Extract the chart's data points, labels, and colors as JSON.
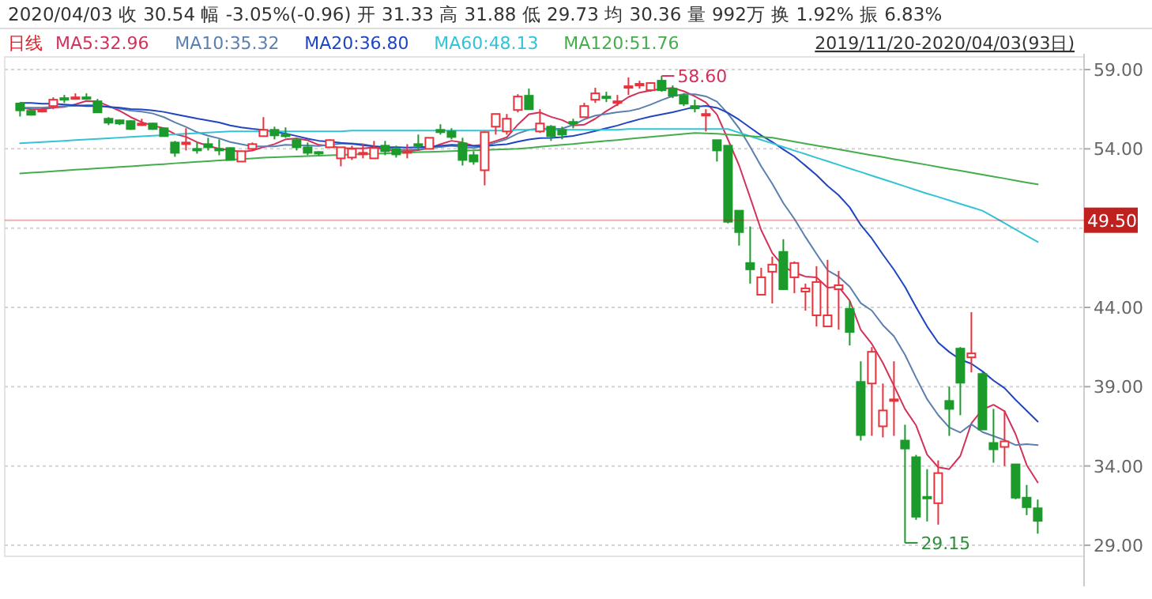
{
  "chart_data": {
    "type": "candlestick",
    "title": "2020/04/03 收 30.54 幅 -3.05%(-0.96) 开 31.33 高 31.88 低 29.73 均 30.36 量 992万 换 1.92% 振 6.83%",
    "subtitle": "日线",
    "categories": [
      null,
      null,
      null,
      null,
      null,
      null,
      null,
      null,
      null,
      null,
      null,
      null,
      null,
      null,
      null,
      null,
      null,
      null,
      null,
      null,
      null,
      null,
      null,
      null,
      null,
      null,
      null,
      null,
      null,
      null,
      null,
      null,
      null,
      null,
      null,
      null,
      null,
      null,
      null,
      null,
      null,
      null,
      null,
      null,
      null,
      null,
      null,
      null,
      null,
      null,
      null,
      null,
      null,
      null,
      null,
      null,
      null,
      null,
      null,
      null,
      null,
      null,
      null,
      null,
      null,
      null,
      null,
      null,
      null,
      null,
      null,
      null,
      null,
      null,
      null,
      null,
      null,
      null,
      null,
      null,
      null,
      null,
      null,
      null,
      null,
      null,
      null,
      null,
      null,
      null,
      null,
      null,
      null
    ],
    "ohlc": [
      [
        56.86,
        56.9,
        56.04,
        56.43
      ],
      [
        56.4,
        56.5,
        56.1,
        56.15
      ],
      [
        56.4,
        56.6,
        56.3,
        56.45
      ],
      [
        56.7,
        57.25,
        56.5,
        57.1
      ],
      [
        57.2,
        57.4,
        56.9,
        57.1
      ],
      [
        57.2,
        57.5,
        57.1,
        57.25
      ],
      [
        57.25,
        57.5,
        57.1,
        57.2
      ],
      [
        57.0,
        57.15,
        56.3,
        56.3
      ],
      [
        55.9,
        56.0,
        55.5,
        55.65
      ],
      [
        55.8,
        55.85,
        55.5,
        55.6
      ],
      [
        55.75,
        55.8,
        55.2,
        55.25
      ],
      [
        55.5,
        55.9,
        55.45,
        55.6
      ],
      [
        55.6,
        55.65,
        55.2,
        55.25
      ],
      [
        55.3,
        55.35,
        54.8,
        54.8
      ],
      [
        54.4,
        54.5,
        53.5,
        53.75
      ],
      [
        54.3,
        55.3,
        53.9,
        54.4
      ],
      [
        54.0,
        54.4,
        53.7,
        53.9
      ],
      [
        54.3,
        54.7,
        53.9,
        54.1
      ],
      [
        54.0,
        54.6,
        53.6,
        53.9
      ],
      [
        54.05,
        54.1,
        53.3,
        53.3
      ],
      [
        53.2,
        53.9,
        53.2,
        53.85
      ],
      [
        54.0,
        54.4,
        53.9,
        54.3
      ],
      [
        54.8,
        56.0,
        54.8,
        55.2
      ],
      [
        55.2,
        55.4,
        54.6,
        54.85
      ],
      [
        54.9,
        55.35,
        54.7,
        54.8
      ],
      [
        54.55,
        54.7,
        53.9,
        54.1
      ],
      [
        54.1,
        54.4,
        53.6,
        53.75
      ],
      [
        53.8,
        53.85,
        53.6,
        53.75
      ],
      [
        54.1,
        54.6,
        54.1,
        54.55
      ],
      [
        53.4,
        54.1,
        52.9,
        54.1
      ],
      [
        53.45,
        54.2,
        53.3,
        54.0
      ],
      [
        53.7,
        54.3,
        53.4,
        53.75
      ],
      [
        53.4,
        54.5,
        53.4,
        54.05
      ],
      [
        54.2,
        54.5,
        53.6,
        53.85
      ],
      [
        54.0,
        54.2,
        53.45,
        53.65
      ],
      [
        53.8,
        54.3,
        53.4,
        53.85
      ],
      [
        54.3,
        54.9,
        53.9,
        54.2
      ],
      [
        54.0,
        54.7,
        54.0,
        54.7
      ],
      [
        55.2,
        55.55,
        54.9,
        55.05
      ],
      [
        55.1,
        55.3,
        54.6,
        54.75
      ],
      [
        54.35,
        54.7,
        52.95,
        53.3
      ],
      [
        53.6,
        53.85,
        53.0,
        53.2
      ],
      [
        52.65,
        55.1,
        51.7,
        55.05
      ],
      [
        55.4,
        56.2,
        54.9,
        56.2
      ],
      [
        55.1,
        56.2,
        54.9,
        55.9
      ],
      [
        56.45,
        57.45,
        56.3,
        57.3
      ],
      [
        57.35,
        57.8,
        56.5,
        56.5
      ],
      [
        55.1,
        56.5,
        55.0,
        55.6
      ],
      [
        55.4,
        55.5,
        54.5,
        54.8
      ],
      [
        55.2,
        55.4,
        54.6,
        54.9
      ],
      [
        55.7,
        55.9,
        55.3,
        55.6
      ],
      [
        56.0,
        56.9,
        56.0,
        56.7
      ],
      [
        57.1,
        57.85,
        56.9,
        57.5
      ],
      [
        57.3,
        57.6,
        56.95,
        57.2
      ],
      [
        56.9,
        57.4,
        56.7,
        57.0
      ],
      [
        57.9,
        58.5,
        57.4,
        57.95
      ],
      [
        58.0,
        58.3,
        57.8,
        58.1
      ],
      [
        57.7,
        58.2,
        57.6,
        58.15
      ],
      [
        58.3,
        58.6,
        57.6,
        57.7
      ],
      [
        57.8,
        58.0,
        57.2,
        57.35
      ],
      [
        57.35,
        57.5,
        56.7,
        56.85
      ],
      [
        56.7,
        57.1,
        56.3,
        56.55
      ],
      [
        56.2,
        56.5,
        55.1,
        56.2
      ],
      [
        54.55,
        54.55,
        53.2,
        53.9
      ],
      [
        54.2,
        54.2,
        49.3,
        49.4
      ],
      [
        50.1,
        50.1,
        47.9,
        48.75
      ],
      [
        46.8,
        49.1,
        45.5,
        46.4
      ],
      [
        44.8,
        46.5,
        44.8,
        45.9
      ],
      [
        46.25,
        47.2,
        44.25,
        46.7
      ],
      [
        47.5,
        48.3,
        45.1,
        45.15
      ],
      [
        45.9,
        46.9,
        44.9,
        46.8
      ],
      [
        45.0,
        45.5,
        43.8,
        45.2
      ],
      [
        43.5,
        46.6,
        42.8,
        45.6
      ],
      [
        42.8,
        47.0,
        42.8,
        43.5
      ],
      [
        45.15,
        46.3,
        42.6,
        45.4
      ],
      [
        43.9,
        44.4,
        41.6,
        42.45
      ],
      [
        39.3,
        40.6,
        35.6,
        35.95
      ],
      [
        39.2,
        41.5,
        35.9,
        41.2
      ],
      [
        36.5,
        39.2,
        35.8,
        37.5
      ],
      [
        38.1,
        40.6,
        35.9,
        38.2
      ],
      [
        35.6,
        36.6,
        29.15,
        35.1
      ],
      [
        34.55,
        34.7,
        30.6,
        30.8
      ],
      [
        32.05,
        33.8,
        30.5,
        31.95
      ],
      [
        31.65,
        34.35,
        30.3,
        33.55
      ],
      [
        38.1,
        39.0,
        35.9,
        37.6
      ],
      [
        41.4,
        41.5,
        37.2,
        39.25
      ],
      [
        40.85,
        43.7,
        39.9,
        41.1
      ],
      [
        39.8,
        39.9,
        36.3,
        36.3
      ],
      [
        35.45,
        37.6,
        34.2,
        35.05
      ],
      [
        35.2,
        37.5,
        34.0,
        35.55
      ],
      [
        34.1,
        34.1,
        31.9,
        32.0
      ],
      [
        32.0,
        32.8,
        30.9,
        31.4
      ],
      [
        31.33,
        31.88,
        29.73,
        30.54
      ]
    ],
    "series": [
      {
        "name": "MA5:32.96",
        "type": "line",
        "color": "#d2325a",
        "values": [
          56.6,
          56.5,
          56.5,
          56.6,
          56.65,
          56.81,
          57.02,
          56.99,
          56.7,
          56.4,
          56.0,
          55.68,
          55.47,
          55.3,
          54.93,
          54.76,
          54.42,
          54.19,
          54.01,
          53.92,
          53.81,
          53.89,
          54.11,
          54.3,
          54.6,
          54.65,
          54.54,
          54.25,
          54.19,
          54.05,
          54.03,
          54.03,
          54.09,
          53.95,
          53.86,
          53.83,
          53.92,
          54.05,
          54.29,
          54.51,
          54.4,
          54.2,
          54.27,
          54.5,
          54.73,
          55.53,
          56.19,
          56.3,
          56.02,
          55.82,
          55.48,
          55.52,
          55.9,
          56.38,
          56.8,
          57.27,
          57.55,
          57.68,
          57.78,
          57.85,
          57.63,
          57.32,
          56.93,
          56.17,
          54.58,
          52.96,
          50.93,
          48.87,
          47.43,
          46.58,
          46.19,
          45.95,
          45.89,
          45.25,
          45.3,
          44.43,
          42.58,
          41.7,
          40.5,
          39.06,
          37.59,
          36.56,
          34.71,
          33.92,
          33.8,
          34.63,
          36.69,
          37.56,
          37.86,
          37.45,
          36.0,
          34.06,
          32.96
        ]
      },
      {
        "name": "MA10:35.32",
        "type": "line",
        "color": "#5b7fae",
        "values": [
          56.6,
          56.6,
          56.6,
          56.65,
          56.7,
          56.71,
          56.76,
          56.75,
          56.65,
          56.53,
          56.41,
          56.35,
          56.23,
          56.0,
          55.67,
          55.38,
          55.05,
          54.83,
          54.66,
          54.43,
          54.29,
          54.16,
          54.15,
          54.16,
          54.26,
          54.23,
          54.22,
          54.18,
          54.25,
          54.33,
          54.34,
          54.29,
          54.17,
          54.07,
          53.96,
          53.93,
          53.98,
          54.07,
          54.12,
          54.19,
          54.12,
          54.06,
          54.16,
          54.4,
          54.62,
          54.97,
          55.2,
          55.29,
          55.26,
          55.28,
          55.51,
          55.86,
          56.1,
          56.2,
          56.31,
          56.38,
          56.54,
          56.79,
          57.08,
          57.33,
          57.45,
          57.44,
          57.31,
          56.98,
          56.22,
          55.3,
          54.13,
          52.9,
          51.8,
          50.58,
          49.58,
          48.44,
          47.38,
          46.34,
          45.94,
          45.31,
          44.27,
          43.8,
          42.88,
          42.18,
          41.01,
          39.57,
          38.21,
          37.21,
          36.43,
          36.11,
          36.63,
          36.14,
          35.89,
          35.63,
          35.32,
          35.38,
          35.32
        ]
      },
      {
        "name": "MA20:36.80",
        "type": "line",
        "color": "#1f45c0",
        "values": [
          56.9,
          56.9,
          56.85,
          56.85,
          56.8,
          56.75,
          56.7,
          56.7,
          56.65,
          56.6,
          56.51,
          56.48,
          56.42,
          56.33,
          56.19,
          56.05,
          55.91,
          55.79,
          55.66,
          55.48,
          55.35,
          55.26,
          55.19,
          55.08,
          54.97,
          54.81,
          54.64,
          54.51,
          54.46,
          54.38,
          54.32,
          54.23,
          54.16,
          54.12,
          54.11,
          54.08,
          54.1,
          54.13,
          54.19,
          54.26,
          54.23,
          54.18,
          54.17,
          54.24,
          54.29,
          54.45,
          54.59,
          54.68,
          54.69,
          54.74,
          54.82,
          54.96,
          55.13,
          55.3,
          55.47,
          55.68,
          55.87,
          56.04,
          56.17,
          56.31,
          56.48,
          56.65,
          56.71,
          56.59,
          56.27,
          55.84,
          55.34,
          54.85,
          54.44,
          53.96,
          53.52,
          52.94,
          52.35,
          51.66,
          51.08,
          50.31,
          49.2,
          48.35,
          47.34,
          46.38,
          45.3,
          44.01,
          42.8,
          41.78,
          41.19,
          40.71,
          40.45,
          39.97,
          39.39,
          38.91,
          38.17,
          37.48,
          36.8
        ]
      },
      {
        "name": "MA60:48.13",
        "type": "line",
        "color": "#33c3d6",
        "values": [
          54.35,
          54.39,
          54.43,
          54.47,
          54.51,
          54.55,
          54.59,
          54.63,
          54.67,
          54.71,
          54.75,
          54.79,
          54.83,
          54.87,
          54.91,
          54.95,
          54.99,
          55.03,
          55.07,
          55.1,
          55.1,
          55.1,
          55.1,
          55.1,
          55.1,
          55.1,
          55.1,
          55.1,
          55.1,
          55.1,
          55.15,
          55.15,
          55.15,
          55.15,
          55.15,
          55.15,
          55.15,
          55.15,
          55.15,
          55.15,
          55.15,
          55.15,
          55.15,
          55.15,
          55.15,
          55.2,
          55.2,
          55.2,
          55.2,
          55.2,
          55.2,
          55.2,
          55.2,
          55.2,
          55.2,
          55.25,
          55.25,
          55.25,
          55.25,
          55.25,
          55.25,
          55.25,
          55.25,
          55.25,
          55.25,
          55.02,
          54.8,
          54.57,
          54.35,
          54.12,
          53.89,
          53.67,
          53.44,
          53.22,
          52.99,
          52.76,
          52.54,
          52.31,
          52.09,
          51.86,
          51.63,
          51.4,
          51.18,
          50.97,
          50.75,
          50.53,
          50.32,
          50.1,
          49.71,
          49.31,
          48.92,
          48.52,
          48.13
        ]
      },
      {
        "name": "MA120:51.76",
        "type": "line",
        "color": "#45ad4c",
        "values": [
          52.45,
          52.5,
          52.54,
          52.59,
          52.63,
          52.68,
          52.72,
          52.77,
          52.81,
          52.86,
          52.9,
          52.95,
          53.0,
          53.04,
          53.09,
          53.13,
          53.18,
          53.22,
          53.27,
          53.31,
          53.36,
          53.4,
          53.45,
          53.47,
          53.5,
          53.52,
          53.55,
          53.57,
          53.6,
          53.62,
          53.64,
          53.67,
          53.69,
          53.71,
          53.74,
          53.76,
          53.79,
          53.81,
          53.83,
          53.86,
          53.88,
          53.9,
          53.93,
          53.95,
          53.98,
          54.0,
          54.06,
          54.13,
          54.19,
          54.25,
          54.31,
          54.38,
          54.44,
          54.5,
          54.56,
          54.63,
          54.69,
          54.75,
          54.81,
          54.88,
          54.94,
          55.0,
          54.98,
          54.95,
          54.9,
          54.85,
          54.8,
          54.75,
          54.7,
          54.58,
          54.46,
          54.33,
          54.21,
          54.09,
          53.97,
          53.84,
          53.72,
          53.6,
          53.48,
          53.35,
          53.23,
          53.11,
          52.99,
          52.86,
          52.74,
          52.62,
          52.5,
          52.37,
          52.25,
          52.13,
          52.0,
          51.88,
          51.76
        ]
      }
    ],
    "ylim": [
      28.3,
      59.8
    ],
    "yticks": [
      {
        "value": 29,
        "label": "29.00"
      },
      {
        "value": 34,
        "label": "34.00"
      },
      {
        "value": 39,
        "label": "39.00"
      },
      {
        "value": 44,
        "label": "44.00"
      },
      {
        "value": 49,
        "label": null
      },
      {
        "value": 54,
        "label": "54.00"
      },
      {
        "value": 59,
        "label": "59.00"
      }
    ],
    "grid": "y",
    "legend": "top",
    "tick_labels": "y",
    "ref_lines": [
      {
        "axis": "y",
        "value": 49.5,
        "label": "49.50",
        "color": "#c0201e"
      }
    ],
    "annotations": [
      "2019/11/20-2020/04/03(93日)",
      "58.60",
      "29.15"
    ]
  }
}
